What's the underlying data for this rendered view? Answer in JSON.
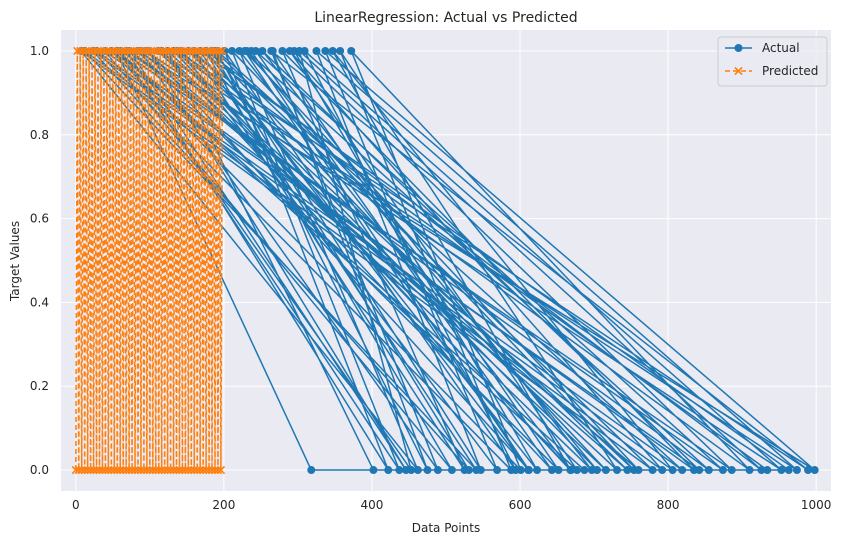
{
  "chart_data": {
    "type": "line",
    "title": "LinearRegression: Actual vs Predicted",
    "xlabel": "Data Points",
    "ylabel": "Target Values",
    "xlim": [
      -20,
      1020
    ],
    "ylim": [
      -0.05,
      1.05
    ],
    "x_ticks": [
      0,
      200,
      400,
      600,
      800,
      1000
    ],
    "y_ticks": [
      0.0,
      0.2,
      0.4,
      0.6,
      0.8,
      1.0
    ],
    "x_tick_labels": [
      "0",
      "200",
      "400",
      "600",
      "800",
      "1000"
    ],
    "y_tick_labels": [
      "0.0",
      "0.2",
      "0.4",
      "0.6",
      "0.8",
      "1.0"
    ],
    "grid": true,
    "legend_position": "top-right",
    "background": "#eaeaf2",
    "series": [
      {
        "name": "Actual",
        "color": "#1f77b4",
        "marker": "circle",
        "linestyle": "solid",
        "x": [
          237,
          612,
          98,
          446,
          73,
          855,
          231,
          704,
          152,
          934,
          318,
          55,
          677,
          289,
          792,
          12,
          541,
          168,
          963,
          402,
          124,
          731,
          357,
          588,
          28,
          819,
          191,
          475,
          266,
          652,
          83,
          998,
          337,
          569,
          142,
          754,
          211,
          437,
          61,
          886,
          295,
          623,
          175,
          508,
          39,
          842,
          252,
          697,
          111,
          974,
          325,
          547,
          188,
          779,
          7,
          462,
          221,
          669,
          132,
          910,
          372,
          601,
          48,
          835,
          279,
          525,
          159,
          745,
          94,
          953,
          309,
          594,
          201,
          422,
          69,
          874,
          243,
          643,
          116,
          716,
          183,
          531,
          23,
          806,
          347,
          668,
          137,
          989,
          264,
          489,
          87,
          760,
          228,
          611,
          176,
          926,
          302,
          453,
          57,
          687
        ],
        "y": [
          1,
          0,
          1,
          0,
          1,
          0,
          1,
          0,
          1,
          0,
          0,
          1,
          0,
          1,
          0,
          1,
          0,
          1,
          0,
          0,
          1,
          0,
          1,
          0,
          1,
          0,
          1,
          0,
          1,
          0,
          1,
          0,
          1,
          0,
          1,
          0,
          1,
          0,
          1,
          0,
          1,
          0,
          1,
          0,
          1,
          0,
          1,
          0,
          1,
          0,
          1,
          0,
          1,
          0,
          1,
          0,
          1,
          0,
          1,
          0,
          1,
          0,
          1,
          0,
          1,
          0,
          1,
          0,
          1,
          0,
          1,
          0,
          1,
          0,
          1,
          0,
          1,
          0,
          1,
          0,
          1,
          0,
          1,
          0,
          1,
          0,
          1,
          0,
          1,
          0,
          1,
          0,
          1,
          0,
          1,
          0,
          1,
          0,
          1,
          0
        ]
      },
      {
        "name": "Predicted",
        "color": "#ff7f0e",
        "marker": "x",
        "linestyle": "dashed",
        "x": [
          0,
          2,
          4,
          6,
          8,
          10,
          12,
          14,
          16,
          18,
          20,
          22,
          24,
          26,
          28,
          30,
          32,
          34,
          36,
          38,
          40,
          42,
          44,
          46,
          48,
          50,
          52,
          54,
          56,
          58,
          60,
          62,
          64,
          66,
          68,
          70,
          72,
          74,
          76,
          78,
          80,
          82,
          84,
          86,
          88,
          90,
          92,
          94,
          96,
          98,
          100,
          102,
          104,
          106,
          108,
          110,
          112,
          114,
          116,
          118,
          120,
          122,
          124,
          126,
          128,
          130,
          132,
          134,
          136,
          138,
          140,
          142,
          144,
          146,
          148,
          150,
          152,
          154,
          156,
          158,
          160,
          162,
          164,
          166,
          168,
          170,
          172,
          174,
          176,
          178,
          180,
          182,
          184,
          186,
          188,
          190,
          192,
          194,
          196,
          198
        ],
        "y": [
          0,
          1,
          0,
          1,
          0,
          1,
          0,
          1,
          0,
          1,
          0,
          1,
          0,
          1,
          0,
          1,
          0,
          1,
          0,
          1,
          0,
          1,
          0,
          1,
          0,
          1,
          0,
          1,
          0,
          1,
          0,
          1,
          0,
          1,
          0,
          1,
          0,
          1,
          0,
          1,
          0,
          1,
          0,
          1,
          0,
          1,
          0,
          1,
          0,
          1,
          0,
          1,
          0,
          1,
          0,
          1,
          0,
          1,
          0,
          1,
          0,
          1,
          0,
          1,
          0,
          1,
          0,
          1,
          0,
          1,
          0,
          1,
          0,
          1,
          0,
          1,
          0,
          1,
          0,
          1,
          0,
          1,
          0,
          1,
          0,
          1,
          0,
          1,
          0,
          1,
          0,
          1,
          0,
          1,
          0,
          1,
          0,
          1,
          0,
          1
        ]
      }
    ]
  }
}
